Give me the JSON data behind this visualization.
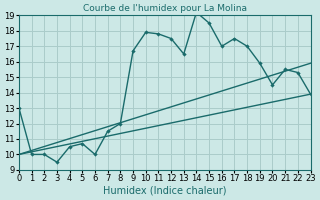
{
  "title": "Courbe de l'humidex pour La Molina",
  "xlabel": "Humidex (Indice chaleur)",
  "bg_color": "#cce8e6",
  "grid_color": "#aaccca",
  "line_color": "#1a6b6b",
  "xlim": [
    0,
    23
  ],
  "ylim": [
    9,
    19
  ],
  "yticks": [
    9,
    10,
    11,
    12,
    13,
    14,
    15,
    16,
    17,
    18,
    19
  ],
  "xticks": [
    0,
    1,
    2,
    3,
    4,
    5,
    6,
    7,
    8,
    9,
    10,
    11,
    12,
    13,
    14,
    15,
    16,
    17,
    18,
    19,
    20,
    21,
    22,
    23
  ],
  "line1_x": [
    0,
    1,
    2,
    3,
    4,
    5,
    6,
    7,
    8,
    9,
    10,
    11,
    12,
    13,
    14,
    15,
    16,
    17,
    18,
    19,
    20,
    21,
    22,
    23
  ],
  "line1_y": [
    13,
    10,
    10,
    9.5,
    10.5,
    10.7,
    10.0,
    11.5,
    12.0,
    16.7,
    17.9,
    17.8,
    17.5,
    16.5,
    19.2,
    18.5,
    17.0,
    17.5,
    17.0,
    15.9,
    14.5,
    15.5,
    15.3,
    13.9
  ],
  "line2_x": [
    0,
    23
  ],
  "line2_y": [
    10.0,
    15.9
  ],
  "line3_x": [
    0,
    23
  ],
  "line3_y": [
    10.0,
    13.9
  ],
  "font_size_label": 7,
  "font_size_tick": 6,
  "title_fontsize": 6.5
}
